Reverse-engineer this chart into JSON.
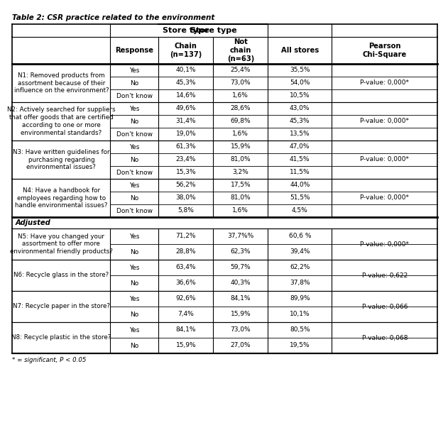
{
  "title": "Table 2: CSR practice related to the environment",
  "footer": "* = significant, P < 0.05",
  "col_headers": [
    "Response",
    "Chain\n(n=137)",
    "Not\nchain\n(n=63)",
    "All stores",
    "Pearson\nChi-Square"
  ],
  "store_type_header": "Store type",
  "rows": [
    {
      "question": "N1: Removed products from\nassortment because of their\ninfluence on the environment?",
      "responses": [
        "Yes",
        "No",
        "Don't know"
      ],
      "chain": [
        "40,1%",
        "45,3%",
        "14,6%"
      ],
      "not_chain": [
        "25,4%",
        "73,0%",
        "1,6%"
      ],
      "all_stores": [
        "35,5%",
        "54,0%",
        "10,5%"
      ],
      "pearson": "P-value: 0,000*",
      "num_responses": 3
    },
    {
      "question": "N2: Actively searched for suppliers\nthat offer goods that are certified\naccording to one or more\nenvironmental standards?",
      "responses": [
        "Yes",
        "No",
        "Don't know"
      ],
      "chain": [
        "49,6%",
        "31,4%",
        "19,0%"
      ],
      "not_chain": [
        "28,6%",
        "69,8%",
        "1,6%"
      ],
      "all_stores": [
        "43,0%",
        "45,3%",
        "13,5%"
      ],
      "pearson": "P-value: 0,000*",
      "num_responses": 3
    },
    {
      "question": "N3: Have written guidelines for\npurchasing regarding\nenvironmental issues?",
      "responses": [
        "Yes",
        "No",
        "Don't know"
      ],
      "chain": [
        "61,3%",
        "23,4%",
        "15,3%"
      ],
      "not_chain": [
        "15,9%",
        "81,0%",
        "3,2%"
      ],
      "all_stores": [
        "47,0%",
        "41,5%",
        "11,5%"
      ],
      "pearson": "P-value: 0,000*",
      "num_responses": 3
    },
    {
      "question": "N4: Have a handbook for\nemployees regarding how to\nhandle environmental issues?",
      "responses": [
        "Yes",
        "No",
        "Don't know"
      ],
      "chain": [
        "56,2%",
        "38,0%",
        "5,8%"
      ],
      "not_chain": [
        "17,5%",
        "81,0%",
        "1,6%"
      ],
      "all_stores": [
        "44,0%",
        "51,5%",
        "4,5%"
      ],
      "pearson": "P-value: 0,000*",
      "num_responses": 3
    },
    {
      "question": "N5: Have you changed your\nassortment to offer more\nenvironmental friendly products?",
      "responses": [
        "Yes",
        "No"
      ],
      "chain": [
        "71,2%",
        "28,8%"
      ],
      "not_chain": [
        "37,7%%",
        "62,3%"
      ],
      "all_stores": [
        "60,6 %",
        "39,4%"
      ],
      "pearson": "P-value: 0,000*",
      "num_responses": 2,
      "adjusted": true
    },
    {
      "question": "N6: Recycle glass in the store?",
      "responses": [
        "Yes",
        "No"
      ],
      "chain": [
        "63,4%",
        "36,6%"
      ],
      "not_chain": [
        "59,7%",
        "40,3%"
      ],
      "all_stores": [
        "62,2%",
        "37,8%"
      ],
      "pearson": "P-value: 0,622",
      "num_responses": 2
    },
    {
      "question": "N7: Recycle paper in the store?",
      "responses": [
        "Yes",
        "No"
      ],
      "chain": [
        "92,6%",
        "7,4%"
      ],
      "not_chain": [
        "84,1%",
        "15,9%"
      ],
      "all_stores": [
        "89,9%",
        "10,1%"
      ],
      "pearson": "P-value: 0,066",
      "num_responses": 2
    },
    {
      "question": "N8: Recycle plastic in the store?",
      "responses": [
        "Yes",
        "No"
      ],
      "chain": [
        "84,1%",
        "15,9%"
      ],
      "not_chain": [
        "73,0%",
        "27,0%"
      ],
      "all_stores": [
        "80,5%",
        "19,5%"
      ],
      "pearson": "P-value: 0,068",
      "num_responses": 2
    }
  ],
  "bg_color": "#ffffff"
}
